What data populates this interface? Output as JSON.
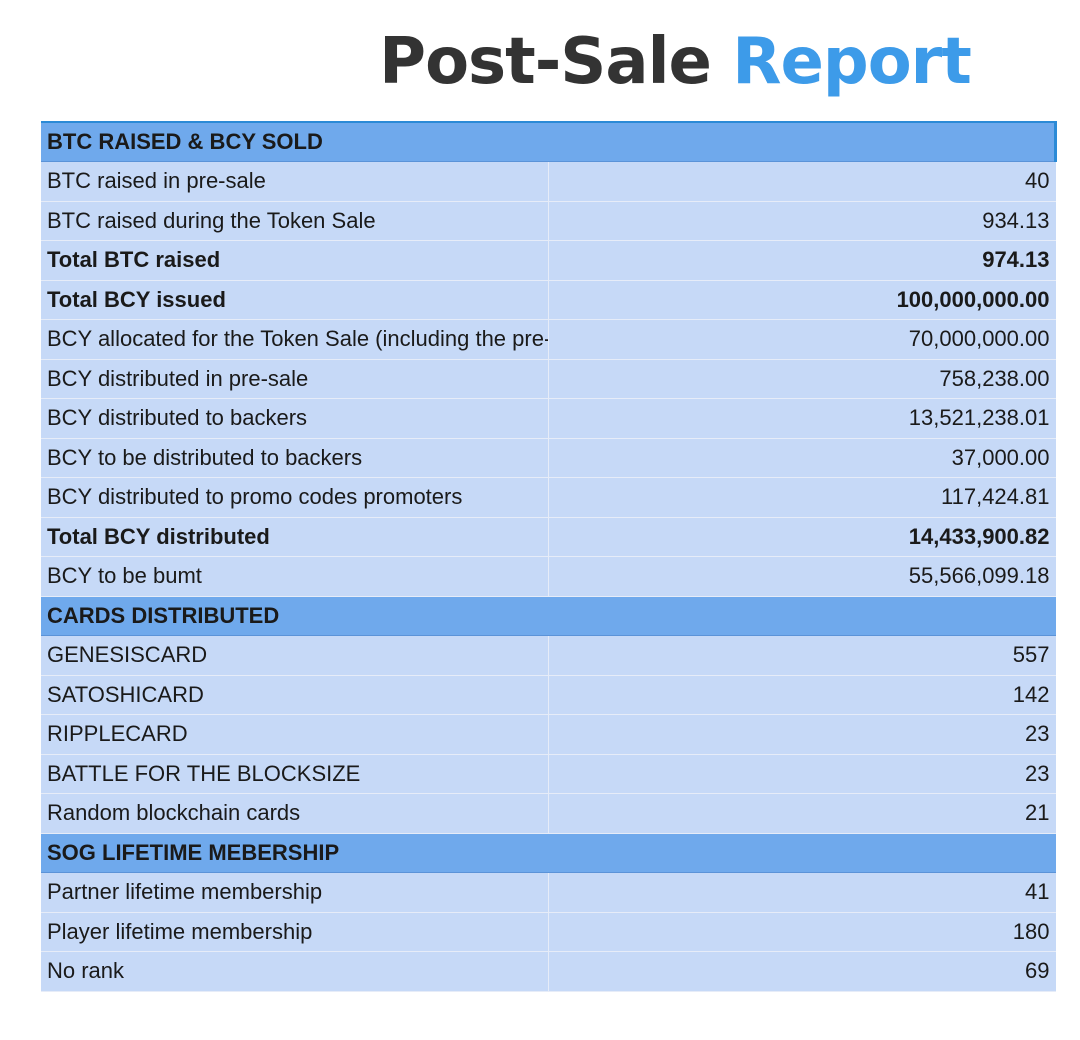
{
  "title": {
    "part1": "Post-Sale",
    "part2": "Report"
  },
  "sections": [
    {
      "header": "BTC RAISED & BCY SOLD",
      "rows": [
        {
          "label": "BTC raised in pre-sale",
          "value": "40",
          "bold": false
        },
        {
          "label": "BTC raised during the Token Sale",
          "value": "934.13",
          "bold": false
        },
        {
          "label": "Total BTC raised",
          "value": "974.13",
          "bold": true
        },
        {
          "label": "Total BCY issued",
          "value": "100,000,000.00",
          "bold": true
        },
        {
          "label": "BCY allocated for the Token Sale (including the pre-sale)",
          "value": "70,000,000.00",
          "bold": false
        },
        {
          "label": "BCY distributed in pre-sale",
          "value": "758,238.00",
          "bold": false
        },
        {
          "label": "BCY distributed to backers",
          "value": "13,521,238.01",
          "bold": false
        },
        {
          "label": "BCY to be distributed to backers",
          "value": "37,000.00",
          "bold": false
        },
        {
          "label": "BCY distributed to promo codes promoters",
          "value": "117,424.81",
          "bold": false
        },
        {
          "label": "Total BCY distributed",
          "value": "14,433,900.82",
          "bold": true
        },
        {
          "label": "BCY to be bumt",
          "value": "55,566,099.18",
          "bold": false
        }
      ]
    },
    {
      "header": "CARDS DISTRIBUTED",
      "rows": [
        {
          "label": "GENESISCARD",
          "value": "557",
          "bold": false
        },
        {
          "label": "SATOSHICARD",
          "value": "142",
          "bold": false
        },
        {
          "label": "RIPPLECARD",
          "value": "23",
          "bold": false
        },
        {
          "label": "BATTLE FOR THE BLOCKSIZE",
          "value": "23",
          "bold": false
        },
        {
          "label": "Random blockchain cards",
          "value": "21",
          "bold": false
        }
      ]
    },
    {
      "header": "SOG LIFETIME MEBERSHIP",
      "rows": [
        {
          "label": "Partner lifetime membership",
          "value": "41",
          "bold": false
        },
        {
          "label": "Player lifetime membership",
          "value": "180",
          "bold": false
        },
        {
          "label": "No rank",
          "value": "69",
          "bold": false
        }
      ]
    }
  ]
}
